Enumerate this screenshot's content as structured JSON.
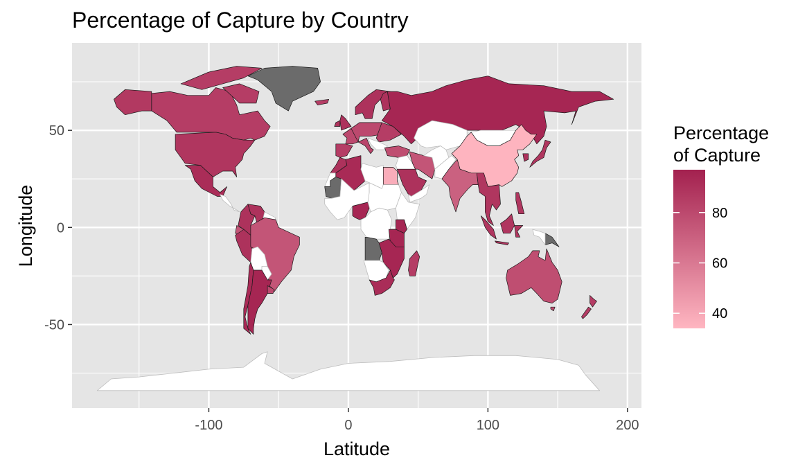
{
  "title": "Percentage of Capture by Country",
  "x_axis": {
    "label": "Latitude",
    "ticks": [
      {
        "value": -100,
        "label": "-100"
      },
      {
        "value": 0,
        "label": "0"
      },
      {
        "value": 100,
        "label": "100"
      },
      {
        "value": 200,
        "label": "200"
      }
    ]
  },
  "y_axis": {
    "label": "Longitude",
    "ticks": [
      {
        "value": 50,
        "label": "50"
      },
      {
        "value": 0,
        "label": "0"
      },
      {
        "value": -50,
        "label": "-50"
      }
    ]
  },
  "legend": {
    "title_line1": "Percentage",
    "title_line2": "of Capture",
    "min": 34,
    "max": 97,
    "ticks": [
      {
        "value": 80,
        "label": "80"
      },
      {
        "value": 60,
        "label": "60"
      },
      {
        "value": 40,
        "label": "40"
      }
    ],
    "color_low": "#FFB6C1",
    "color_high": "#A3214F"
  },
  "colors": {
    "panel_background": "#E5E5E5",
    "grid_major": "#FFFFFF",
    "missing_country": "#6B6B6B",
    "no_data_country": "#FFFFFF"
  },
  "chart_data": {
    "type": "choropleth",
    "title": "Percentage of Capture by Country",
    "xlabel": "Latitude",
    "ylabel": "Longitude",
    "xlim": [
      -198,
      210
    ],
    "ylim": [
      -93,
      95
    ],
    "grid": true,
    "legend_position": "right",
    "color_scale": {
      "min": 34,
      "max": 97,
      "low_color": "#FFB6C1",
      "high_color": "#A3214F"
    },
    "regions": [
      {
        "name": "Canada",
        "value": 85
      },
      {
        "name": "United States",
        "value": 88
      },
      {
        "name": "Alaska",
        "value": 87
      },
      {
        "name": "Mexico",
        "value": 92
      },
      {
        "name": "Greenland",
        "value": null
      },
      {
        "name": "Colombia",
        "value": 90
      },
      {
        "name": "Venezuela",
        "value": 90
      },
      {
        "name": "Ecuador",
        "value": 75
      },
      {
        "name": "Peru",
        "value": 90
      },
      {
        "name": "Brazil",
        "value": 75
      },
      {
        "name": "Bolivia",
        "value": null
      },
      {
        "name": "Chile",
        "value": 93
      },
      {
        "name": "Argentina",
        "value": 95
      },
      {
        "name": "Uruguay",
        "value": 80
      },
      {
        "name": "United Kingdom",
        "value": 90
      },
      {
        "name": "Scandinavia",
        "value": 90
      },
      {
        "name": "France",
        "value": 80
      },
      {
        "name": "Spain",
        "value": 85
      },
      {
        "name": "Russia",
        "value": 95
      },
      {
        "name": "Kazakhstan",
        "value": null
      },
      {
        "name": "Mongolia",
        "value": null
      },
      {
        "name": "China",
        "value": 35
      },
      {
        "name": "India",
        "value": 70
      },
      {
        "name": "Turkey",
        "value": 78
      },
      {
        "name": "Iran",
        "value": 75
      },
      {
        "name": "Saudi Arabia",
        "value": 90
      },
      {
        "name": "Egypt",
        "value": 38
      },
      {
        "name": "Morocco",
        "value": 90
      },
      {
        "name": "Algeria",
        "value": 93
      },
      {
        "name": "Mauritania",
        "value": null
      },
      {
        "name": "Nigeria",
        "value": 95
      },
      {
        "name": "Kenya",
        "value": 95
      },
      {
        "name": "Tanzania",
        "value": 95
      },
      {
        "name": "Angola",
        "value": null
      },
      {
        "name": "Zambia",
        "value": 95
      },
      {
        "name": "Madagascar",
        "value": 85
      },
      {
        "name": "South Africa",
        "value": 92
      },
      {
        "name": "Japan",
        "value": 88
      },
      {
        "name": "South Korea",
        "value": 90
      },
      {
        "name": "Southeast Asia",
        "value": 88
      },
      {
        "name": "Indonesia",
        "value": 88
      },
      {
        "name": "Papua New Guinea",
        "value": null
      },
      {
        "name": "Australia",
        "value": 78
      },
      {
        "name": "New Zealand",
        "value": 85
      },
      {
        "name": "Antarctica",
        "value": null
      }
    ]
  }
}
